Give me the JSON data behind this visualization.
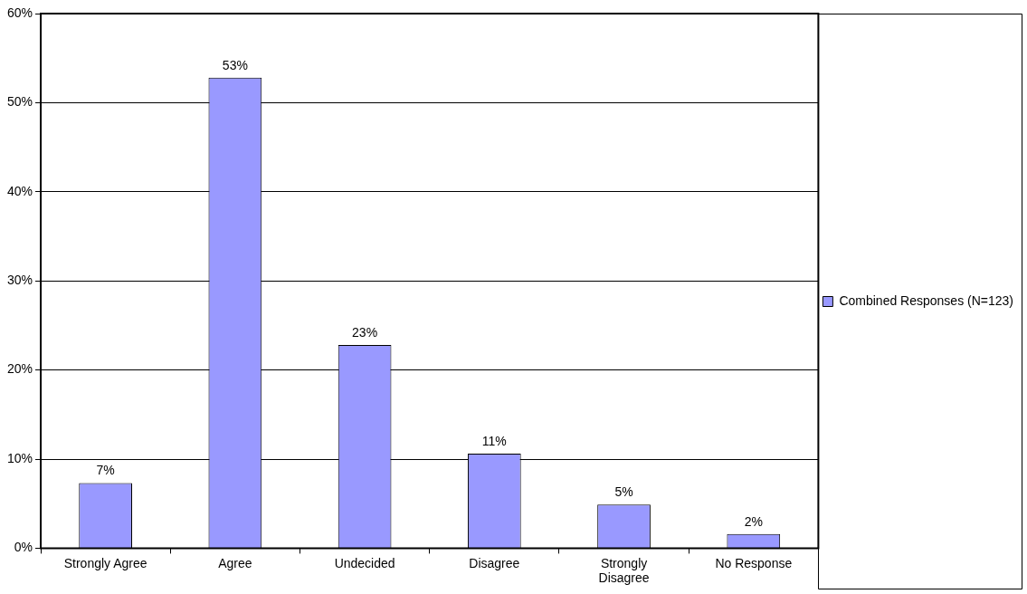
{
  "chart_data": {
    "type": "bar",
    "categories": [
      "Strongly Agree",
      "Agree",
      "Undecided",
      "Disagree",
      "Strongly Disagree",
      "No Response"
    ],
    "series": [
      {
        "name": "Combined Responses (N=123)",
        "color": "#9999ff",
        "values": [
          7.3,
          52.8,
          22.8,
          10.6,
          4.9,
          1.6
        ],
        "value_labels": [
          "7%",
          "53%",
          "23%",
          "11%",
          "5%",
          "2%"
        ]
      }
    ],
    "ylim": [
      0,
      60
    ],
    "yticks": [
      {
        "value": 0,
        "label": "0%"
      },
      {
        "value": 10,
        "label": "10%"
      },
      {
        "value": 20,
        "label": "20%"
      },
      {
        "value": 30,
        "label": "30%"
      },
      {
        "value": 40,
        "label": "40%"
      },
      {
        "value": 50,
        "label": "50%"
      },
      {
        "value": 60,
        "label": "60%"
      }
    ],
    "grid": "y",
    "legend": "right"
  }
}
